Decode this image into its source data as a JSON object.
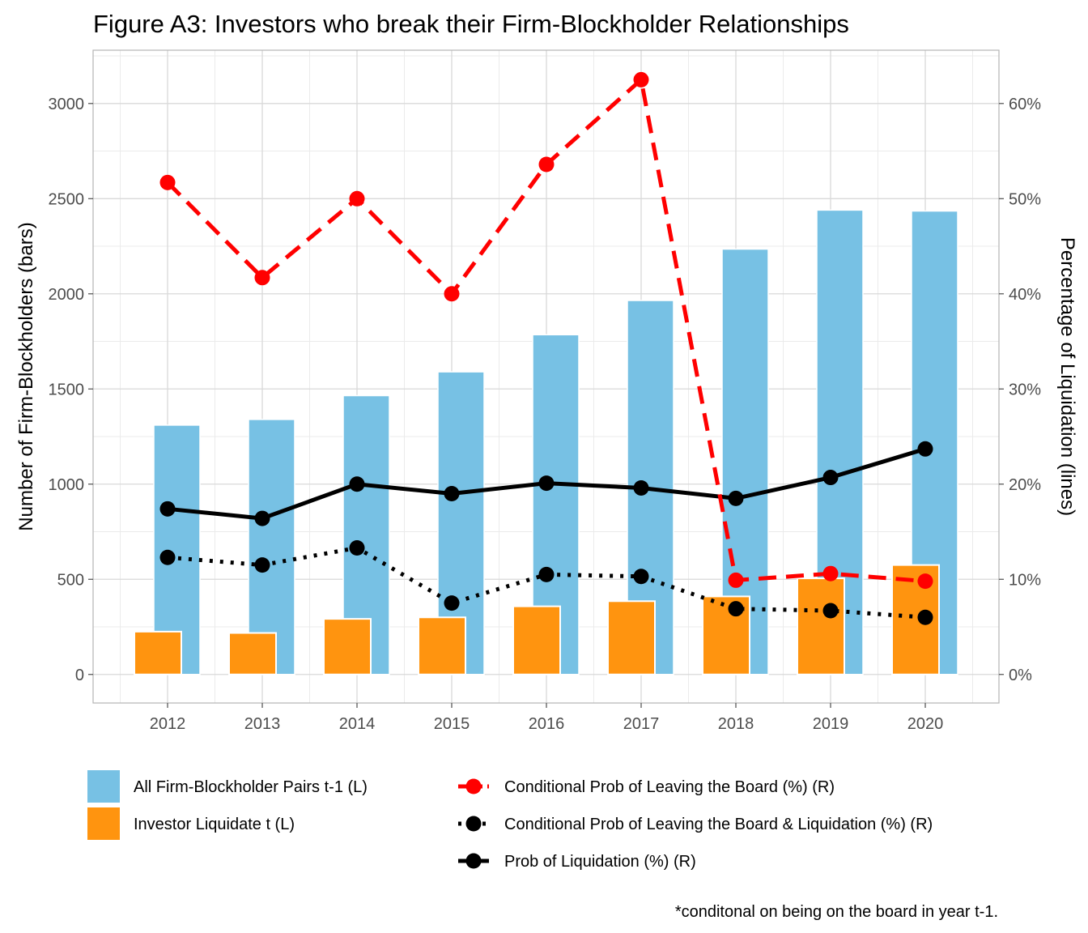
{
  "chart_data": {
    "type": "bar",
    "title": "Figure A3: Investors who break their Firm-Blockholder Relationships",
    "xlabel": "",
    "ylabel": "Number of Firm-Blockholders (bars)",
    "y2label": "Percentage of Liquidation (lines)",
    "ylim": [
      -150,
      3280
    ],
    "y2lim": [
      -3,
      65.6
    ],
    "y_ticks": [
      "0",
      "500",
      "1000",
      "1500",
      "2000",
      "2500",
      "3000"
    ],
    "y2_ticks": [
      "0%",
      "10%",
      "20%",
      "30%",
      "40%",
      "50%",
      "60%"
    ],
    "categories": [
      "2012",
      "2013",
      "2014",
      "2015",
      "2016",
      "2017",
      "2018",
      "2019",
      "2020"
    ],
    "bar_series": [
      {
        "name": "All Firm-Blockholder Pairs t-1 (L)",
        "color": "#77C1E4",
        "values": [
          1310,
          1340,
          1465,
          1590,
          1785,
          1965,
          2235,
          2440,
          2435
        ]
      },
      {
        "name": "Investor Liquidate t (L)",
        "color": "#FF940F",
        "values": [
          225,
          218,
          292,
          300,
          358,
          385,
          410,
          505,
          575
        ]
      }
    ],
    "line_series": [
      {
        "name": "Conditional Prob of Leaving the Board (%) (R)",
        "color": "#FF0000",
        "dash": "dashed",
        "values": [
          51.7,
          41.7,
          50.0,
          40.0,
          53.6,
          62.5,
          9.9,
          10.6,
          9.8
        ]
      },
      {
        "name": "Conditional Prob of Leaving the Board & Liquidation (%) (R)",
        "color": "#000000",
        "dash": "dotted",
        "values": [
          12.3,
          11.5,
          13.3,
          7.5,
          10.5,
          10.3,
          6.9,
          6.7,
          6.0
        ]
      },
      {
        "name": "Prob of Liquidation (%) (R)",
        "color": "#000000",
        "dash": "solid",
        "values": [
          17.4,
          16.4,
          20.0,
          19.0,
          20.1,
          19.6,
          18.5,
          20.7,
          23.7
        ]
      }
    ],
    "legend": {
      "position": "bottom"
    },
    "grid": true,
    "footnote": "*conditonal on being on the board in year t-1."
  }
}
